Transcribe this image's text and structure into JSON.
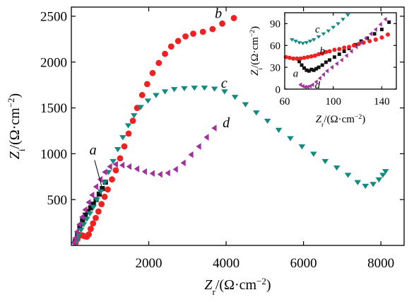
{
  "chart_data": [
    {
      "type": "scatter",
      "xlabel": "Zr/(Ω·cm−2)",
      "ylabel": "Zi/(Ω·cm−2)",
      "xlabel_parts": {
        "sym": "Z",
        "sub": "r",
        "unit": "/(Ω·cm",
        "exp": "−2",
        "close": ")"
      },
      "ylabel_parts": {
        "sym": "Z",
        "sub": "i",
        "unit": "/(Ω·cm",
        "exp": "−2",
        "close": ")"
      },
      "xlim": [
        0,
        8600
      ],
      "ylim": [
        0,
        2600
      ],
      "xticks": [
        "2000",
        "4000",
        "6000",
        "8000"
      ],
      "yticks": [
        "500",
        "1000",
        "1500",
        "2000",
        "2500"
      ],
      "xtick_values": [
        2000,
        4000,
        6000,
        8000
      ],
      "ytick_values": [
        500,
        1000,
        1500,
        2000,
        2500
      ],
      "grid": false,
      "series": [
        {
          "name": "a",
          "color": "#111111",
          "marker": "square",
          "points": [
            [
              100,
              40
            ],
            [
              160,
              120
            ],
            [
              220,
              200
            ],
            [
              290,
              270
            ],
            [
              360,
              330
            ],
            [
              430,
              370
            ],
            [
              500,
              410
            ],
            [
              570,
              450
            ],
            [
              640,
              500
            ],
            [
              720,
              560
            ],
            [
              800,
              620
            ],
            [
              880,
              690
            ]
          ]
        },
        {
          "name": "b",
          "color": "#ee2222",
          "marker": "circle",
          "points": [
            [
              110,
              30
            ],
            [
              160,
              70
            ],
            [
              220,
              110
            ],
            [
              280,
              110
            ],
            [
              340,
              100
            ],
            [
              400,
              95
            ],
            [
              450,
              120
            ],
            [
              500,
              180
            ],
            [
              560,
              240
            ],
            [
              630,
              300
            ],
            [
              700,
              370
            ],
            [
              780,
              450
            ],
            [
              860,
              530
            ],
            [
              940,
              610
            ],
            [
              1050,
              720
            ],
            [
              1150,
              820
            ],
            [
              1260,
              950
            ],
            [
              1370,
              1080
            ],
            [
              1480,
              1220
            ],
            [
              1590,
              1360
            ],
            [
              1700,
              1500
            ],
            [
              1830,
              1640
            ],
            [
              1960,
              1760
            ],
            [
              2100,
              1880
            ],
            [
              2260,
              1990
            ],
            [
              2420,
              2090
            ],
            [
              2580,
              2170
            ],
            [
              2760,
              2230
            ],
            [
              2950,
              2280
            ],
            [
              3150,
              2310
            ],
            [
              3400,
              2330
            ],
            [
              3650,
              2360
            ],
            [
              3900,
              2420
            ],
            [
              4200,
              2480
            ]
          ]
        },
        {
          "name": "c",
          "color": "#138a80",
          "marker": "triangle-down",
          "points": [
            [
              100,
              25
            ],
            [
              140,
              60
            ],
            [
              190,
              110
            ],
            [
              250,
              170
            ],
            [
              320,
              230
            ],
            [
              400,
              290
            ],
            [
              480,
              350
            ],
            [
              570,
              420
            ],
            [
              660,
              500
            ],
            [
              760,
              590
            ],
            [
              860,
              690
            ],
            [
              960,
              800
            ],
            [
              1080,
              920
            ],
            [
              1200,
              1050
            ],
            [
              1330,
              1180
            ],
            [
              1470,
              1310
            ],
            [
              1620,
              1420
            ],
            [
              1790,
              1510
            ],
            [
              1980,
              1580
            ],
            [
              2190,
              1640
            ],
            [
              2420,
              1680
            ],
            [
              2660,
              1705
            ],
            [
              2920,
              1715
            ],
            [
              3180,
              1720
            ],
            [
              3440,
              1720
            ],
            [
              3700,
              1710
            ],
            [
              3960,
              1680
            ],
            [
              4230,
              1620
            ],
            [
              4500,
              1540
            ],
            [
              4780,
              1450
            ],
            [
              5070,
              1360
            ],
            [
              5360,
              1260
            ],
            [
              5660,
              1170
            ],
            [
              5960,
              1080
            ],
            [
              6260,
              1000
            ],
            [
              6560,
              920
            ],
            [
              6860,
              850
            ],
            [
              7150,
              770
            ],
            [
              7400,
              690
            ],
            [
              7600,
              650
            ],
            [
              7800,
              670
            ],
            [
              7950,
              720
            ],
            [
              8050,
              770
            ],
            [
              8120,
              810
            ]
          ]
        },
        {
          "name": "d",
          "color": "#a0309a",
          "marker": "triangle-left",
          "points": [
            [
              60,
              30
            ],
            [
              100,
              80
            ],
            [
              150,
              150
            ],
            [
              210,
              230
            ],
            [
              280,
              310
            ],
            [
              360,
              390
            ],
            [
              450,
              470
            ],
            [
              540,
              550
            ],
            [
              640,
              640
            ],
            [
              750,
              720
            ],
            [
              870,
              800
            ],
            [
              1000,
              860
            ],
            [
              1150,
              885
            ],
            [
              1320,
              875
            ],
            [
              1500,
              860
            ],
            [
              1700,
              835
            ],
            [
              1900,
              805
            ],
            [
              2100,
              785
            ],
            [
              2300,
              775
            ],
            [
              2500,
              790
            ],
            [
              2700,
              830
            ],
            [
              2900,
              900
            ],
            [
              3100,
              990
            ],
            [
              3300,
              1080
            ],
            [
              3500,
              1180
            ],
            [
              3700,
              1280
            ]
          ]
        }
      ],
      "series_labels": [
        {
          "text": "a",
          "x": 560,
          "y": 990
        },
        {
          "text": "b",
          "x": 3800,
          "y": 2480
        },
        {
          "text": "c",
          "x": 3950,
          "y": 1720
        },
        {
          "text": "d",
          "x": 4000,
          "y": 1290
        }
      ]
    },
    {
      "type": "scatter",
      "inset": true,
      "xlabel": "Zr/(Ω·cm−2)",
      "ylabel": "Zi/(Ω·cm−2)",
      "xlabel_parts": {
        "sym": "Z",
        "sub": "r",
        "unit": "/(Ω·cm",
        "exp": "−2",
        "close": ")"
      },
      "ylabel_parts": {
        "sym": "Z",
        "sub": "i",
        "unit": "/(Ω·cm",
        "exp": "−2",
        "close": ")"
      },
      "xlim": [
        60,
        152
      ],
      "ylim": [
        0,
        105
      ],
      "xticks": [
        "60",
        "100",
        "140"
      ],
      "yticks": [
        "0",
        "30",
        "60",
        "90"
      ],
      "xtick_values": [
        60,
        100,
        140
      ],
      "ytick_values": [
        0,
        30,
        60,
        90
      ],
      "grid": false,
      "series": [
        {
          "name": "a",
          "color": "#111111",
          "marker": "square",
          "points": [
            [
              72,
              38
            ],
            [
              74,
              33
            ],
            [
              76,
              29
            ],
            [
              78,
              26
            ],
            [
              80,
              25
            ],
            [
              82,
              27
            ],
            [
              84,
              26
            ],
            [
              86,
              28
            ],
            [
              88,
              30
            ],
            [
              91,
              33
            ],
            [
              94,
              37
            ],
            [
              97,
              40
            ],
            [
              101,
              44
            ],
            [
              105,
              48
            ],
            [
              109,
              52
            ],
            [
              113,
              56
            ],
            [
              118,
              61
            ],
            [
              123,
              66
            ],
            [
              128,
              70
            ],
            [
              134,
              76
            ],
            [
              140,
              82
            ],
            [
              146,
              92
            ]
          ]
        },
        {
          "name": "b",
          "color": "#ee2222",
          "marker": "circle",
          "points": [
            [
              61,
              44
            ],
            [
              64,
              43
            ],
            [
              67,
              42
            ],
            [
              70,
              42
            ],
            [
              73,
              42
            ],
            [
              76,
              43
            ],
            [
              79,
              44
            ],
            [
              82,
              45
            ],
            [
              85,
              46
            ],
            [
              88,
              48
            ],
            [
              91,
              49
            ],
            [
              94,
              51
            ],
            [
              97,
              52
            ],
            [
              101,
              54
            ],
            [
              105,
              55
            ],
            [
              109,
              57
            ],
            [
              113,
              58
            ],
            [
              117,
              60
            ],
            [
              121,
              62
            ],
            [
              125,
              64
            ],
            [
              130,
              66
            ],
            [
              135,
              68
            ],
            [
              140,
              71
            ],
            [
              145,
              75
            ]
          ]
        },
        {
          "name": "c",
          "color": "#138a80",
          "marker": "triangle-down",
          "points": [
            [
              66,
              68
            ],
            [
              69,
              66
            ],
            [
              72,
              64
            ],
            [
              75,
              63
            ],
            [
              78,
              64
            ],
            [
              81,
              66
            ],
            [
              84,
              68
            ],
            [
              88,
              72
            ],
            [
              92,
              76
            ],
            [
              96,
              80
            ],
            [
              100,
              85
            ],
            [
              104,
              90
            ],
            [
              108,
              96
            ],
            [
              112,
              102
            ]
          ]
        },
        {
          "name": "d",
          "color": "#a0309a",
          "marker": "triangle-left",
          "points": [
            [
              73,
              6
            ],
            [
              75,
              4
            ],
            [
              77,
              3
            ],
            [
              79,
              3
            ],
            [
              81,
              4
            ],
            [
              83,
              6
            ],
            [
              86,
              10
            ],
            [
              89,
              15
            ],
            [
              92,
              20
            ],
            [
              95,
              25
            ],
            [
              99,
              30
            ],
            [
              103,
              35
            ],
            [
              107,
              40
            ],
            [
              111,
              46
            ],
            [
              115,
              52
            ],
            [
              119,
              58
            ],
            [
              123,
              64
            ],
            [
              127,
              70
            ],
            [
              131,
              76
            ],
            [
              135,
              82
            ],
            [
              139,
              89
            ],
            [
              143,
              96
            ]
          ]
        }
      ],
      "series_labels": [
        {
          "text": "a",
          "x": 69,
          "y": 17
        },
        {
          "text": "b",
          "x": 91,
          "y": 48
        },
        {
          "text": "c",
          "x": 87,
          "y": 78
        },
        {
          "text": "d",
          "x": 87,
          "y": 1
        }
      ]
    }
  ]
}
